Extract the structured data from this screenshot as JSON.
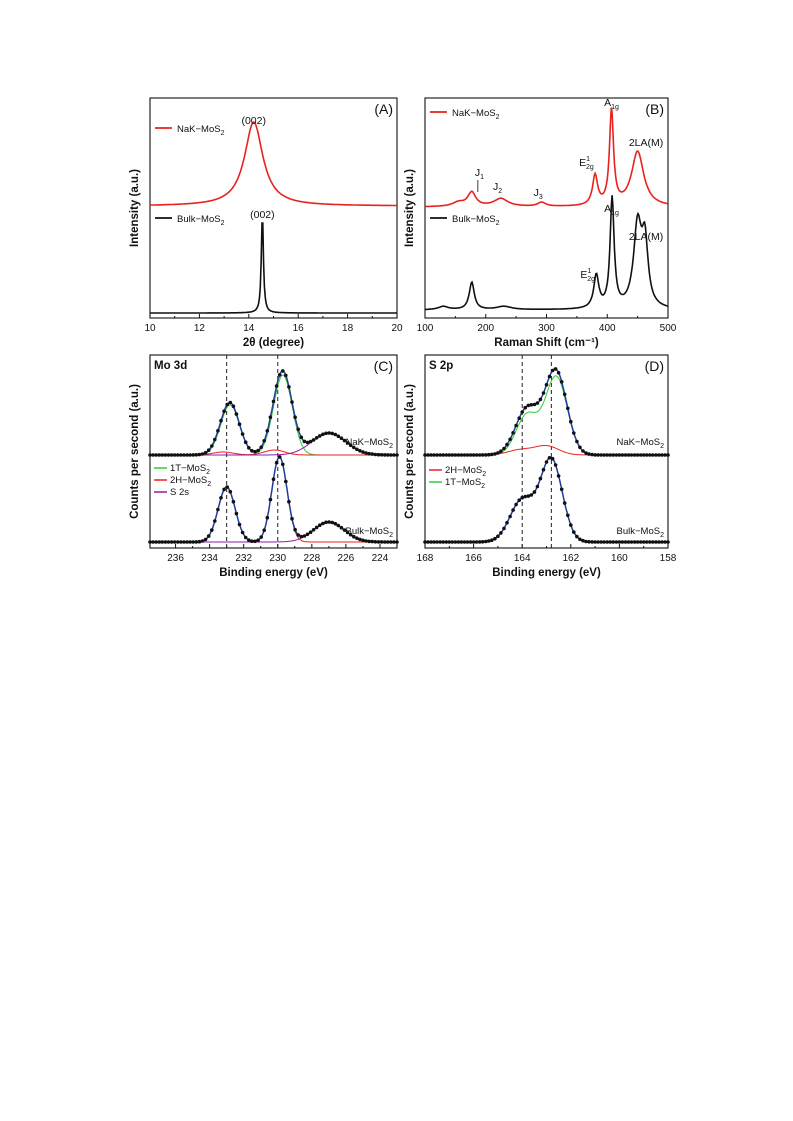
{
  "chart_data": [
    {
      "type": "line",
      "panel_label": "(A)",
      "xlabel": "2θ (degree)",
      "ylabel": "Intensity (a.u.)",
      "xlim": [
        10,
        20
      ],
      "xticks": [
        "10",
        "12",
        "14",
        "16",
        "18",
        "20"
      ],
      "annotations": [
        {
          "text": "(002)",
          "x": 14.2
        },
        {
          "text": "(002)",
          "x": 14.55
        }
      ],
      "series": [
        {
          "name": "NaK−MoS2",
          "name_main": "NaK−MoS",
          "name_sub": "2",
          "color": "#e8231f",
          "peaks": [
            {
              "center": 14.2,
              "height": 1.0,
              "width": 0.45
            }
          ],
          "baseline": 0.0
        },
        {
          "name": "Bulk−MoS2",
          "name_main": "Bulk−MoS",
          "name_sub": "2",
          "color": "#111111",
          "peaks": [
            {
              "center": 14.55,
              "height": 1.0,
              "width": 0.05
            }
          ],
          "baseline": 0.0
        }
      ]
    },
    {
      "type": "line",
      "panel_label": "(B)",
      "xlabel": "Raman Shift (cm⁻¹)",
      "ylabel": "Intensity (a.u.)",
      "xlim": [
        100,
        500
      ],
      "xticks": [
        "100",
        "200",
        "300",
        "400",
        "500"
      ],
      "annotations": [
        {
          "main": "J",
          "sub": "1",
          "x": 187
        },
        {
          "main": "J",
          "sub": "2",
          "x": 225
        },
        {
          "main": "J",
          "sub": "3",
          "x": 292
        },
        {
          "main": "E",
          "sub": "2g",
          "sup": "1",
          "x": 380,
          "series": 0
        },
        {
          "main": "A",
          "sub": "1g",
          "x": 408,
          "series": 0
        },
        {
          "main": "2LA(M)",
          "x": 452,
          "series": 0
        },
        {
          "main": "E",
          "sub": "2g",
          "sup": "1",
          "x": 382,
          "series": 1
        },
        {
          "main": "A",
          "sub": "1g",
          "x": 408,
          "series": 1
        },
        {
          "main": "2LA(M)",
          "x": 452,
          "series": 1
        }
      ],
      "series": [
        {
          "name": "NaK−MoS2",
          "name_main": "NaK−MoS",
          "name_sub": "2",
          "color": "#e8231f",
          "peaks": [
            {
              "center": 155,
              "height": 0.04,
              "width": 12
            },
            {
              "center": 177,
              "height": 0.14,
              "width": 8
            },
            {
              "center": 225,
              "height": 0.08,
              "width": 14
            },
            {
              "center": 292,
              "height": 0.04,
              "width": 8
            },
            {
              "center": 380,
              "height": 0.3,
              "width": 5
            },
            {
              "center": 407,
              "height": 0.95,
              "width": 4
            },
            {
              "center": 450,
              "height": 0.55,
              "width": 12
            }
          ]
        },
        {
          "name": "Bulk−MoS2",
          "name_main": "Bulk−MoS",
          "name_sub": "2",
          "color": "#111111",
          "peaks": [
            {
              "center": 130,
              "height": 0.03,
              "width": 10
            },
            {
              "center": 177,
              "height": 0.25,
              "width": 5
            },
            {
              "center": 230,
              "height": 0.03,
              "width": 15
            },
            {
              "center": 382,
              "height": 0.3,
              "width": 5
            },
            {
              "center": 408,
              "height": 1.0,
              "width": 4
            },
            {
              "center": 450,
              "height": 0.75,
              "width": 8
            },
            {
              "center": 462,
              "height": 0.55,
              "width": 6
            }
          ]
        }
      ]
    },
    {
      "type": "line",
      "panel_label": "(C)",
      "region": "Mo 3d",
      "xlabel": "Binding energy (eV)",
      "ylabel": "Counts per second (a.u.)",
      "xlim": [
        237.5,
        223
      ],
      "xticks": [
        "236",
        "234",
        "232",
        "230",
        "228",
        "226",
        "224"
      ],
      "reference_lines": [
        233.0,
        230.0
      ],
      "legend": [
        {
          "main": "1T−MoS",
          "sub": "2",
          "color": "#33cc33"
        },
        {
          "main": "2H−MoS",
          "sub": "2",
          "color": "#e8231f"
        },
        {
          "main": "S 2s",
          "color": "#8a1fa8"
        }
      ],
      "series": [
        {
          "name": "NaK−MoS2",
          "name_main": "NaK−MoS",
          "name_sub": "2",
          "components": [
            {
              "label": "1T−MoS2",
              "color": "#33cc33",
              "peaks": [
                {
                  "center": 232.8,
                  "height": 0.5,
                  "width": 0.55
                },
                {
                  "center": 229.7,
                  "height": 0.8,
                  "width": 0.55
                }
              ]
            },
            {
              "label": "2H−MoS2",
              "color": "#e8231f",
              "peaks": [
                {
                  "center": 233.2,
                  "height": 0.03,
                  "width": 0.6
                },
                {
                  "center": 230.2,
                  "height": 0.05,
                  "width": 0.6
                }
              ]
            },
            {
              "label": "S 2s",
              "color": "#8a1fa8",
              "peaks": [
                {
                  "center": 227.0,
                  "height": 0.22,
                  "width": 1.0
                }
              ]
            }
          ]
        },
        {
          "name": "Bulk−MoS2",
          "name_main": "Bulk−MoS",
          "name_sub": "2",
          "components": [
            {
              "label": "2H−MoS2",
              "color": "#e8231f",
              "peaks": [
                {
                  "center": 233.0,
                  "height": 0.55,
                  "width": 0.5
                },
                {
                  "center": 229.9,
                  "height": 0.85,
                  "width": 0.45
                }
              ]
            },
            {
              "label": "S 2s",
              "color": "#8a1fa8",
              "peaks": [
                {
                  "center": 227.0,
                  "height": 0.2,
                  "width": 0.9
                }
              ]
            }
          ]
        }
      ]
    },
    {
      "type": "line",
      "panel_label": "(D)",
      "region": "S 2p",
      "xlabel": "Binding energy (eV)",
      "ylabel": "Counts per second (a.u.)",
      "xlim": [
        168,
        158
      ],
      "xticks": [
        "168",
        "166",
        "164",
        "162",
        "160",
        "158"
      ],
      "reference_lines": [
        164.0,
        162.8
      ],
      "legend": [
        {
          "main": "2H−MoS",
          "sub": "2",
          "color": "#e8231f"
        },
        {
          "main": "1T−MoS",
          "sub": "2",
          "color": "#33cc33"
        }
      ],
      "series": [
        {
          "name": "NaK−MoS2",
          "name_main": "NaK−MoS",
          "name_sub": "2",
          "components": [
            {
              "label": "1T−MoS2",
              "color": "#33cc33",
              "peaks": [
                {
                  "center": 163.8,
                  "height": 0.4,
                  "width": 0.45
                },
                {
                  "center": 162.6,
                  "height": 0.78,
                  "width": 0.45
                }
              ]
            },
            {
              "label": "2H−MoS2",
              "color": "#e8231f",
              "peaks": [
                {
                  "center": 164.1,
                  "height": 0.05,
                  "width": 0.5
                },
                {
                  "center": 163.0,
                  "height": 0.09,
                  "width": 0.5
                }
              ]
            }
          ]
        },
        {
          "name": "Bulk−MoS2",
          "name_main": "Bulk−MoS",
          "name_sub": "2",
          "components": [
            {
              "label": "2H−MoS2",
              "color": "#e8231f",
              "peaks": [
                {
                  "center": 164.0,
                  "height": 0.42,
                  "width": 0.5
                },
                {
                  "center": 162.8,
                  "height": 0.82,
                  "width": 0.45
                }
              ]
            }
          ]
        }
      ]
    }
  ]
}
